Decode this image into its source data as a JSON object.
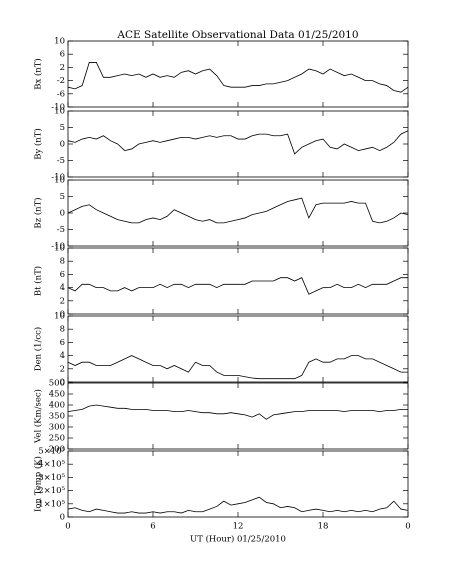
{
  "chart_data": [
    {
      "type": "line",
      "title": "ACE Satellite Observational Data  01/25/2010",
      "ylabel": "Bx (nT)",
      "color": "#000000",
      "ylim": [
        -10,
        10
      ],
      "yticks": [
        -10,
        -6,
        -2,
        2,
        6,
        10
      ],
      "x": [
        0,
        0.5,
        1,
        1.5,
        2,
        2.5,
        3,
        3.5,
        4,
        4.5,
        5,
        5.5,
        6,
        6.5,
        7,
        7.5,
        8,
        8.5,
        9,
        9.5,
        10,
        10.5,
        11,
        11.5,
        12,
        12.5,
        13,
        13.5,
        14,
        14.5,
        15,
        15.5,
        16,
        16.5,
        17,
        17.5,
        18,
        18.5,
        19,
        19.5,
        20,
        20.5,
        21,
        21.5,
        22,
        22.5,
        23,
        23.5,
        24
      ],
      "values": [
        -4,
        -4.5,
        -3.5,
        3.5,
        3.5,
        -1,
        -1,
        -0.5,
        0,
        -0.5,
        0,
        -1,
        0,
        -1,
        -0.5,
        -1,
        0.5,
        1,
        0,
        1,
        1.5,
        -0.5,
        -3.5,
        -4,
        -4,
        -4,
        -3.5,
        -3.5,
        -3,
        -3,
        -2.5,
        -2,
        -1,
        0,
        1.5,
        1,
        0,
        1.5,
        0.5,
        -0.5,
        0,
        -1,
        -2,
        -2,
        -3,
        -3.5,
        -5,
        -5.5,
        -4
      ]
    },
    {
      "type": "line",
      "ylabel": "By (nT)",
      "color": "#000000",
      "ylim": [
        -10,
        10
      ],
      "yticks": [
        -10,
        -5,
        0,
        5,
        10
      ],
      "x": [
        0,
        0.5,
        1,
        1.5,
        2,
        2.5,
        3,
        3.5,
        4,
        4.5,
        5,
        5.5,
        6,
        6.5,
        7,
        7.5,
        8,
        8.5,
        9,
        9.5,
        10,
        10.5,
        11,
        11.5,
        12,
        12.5,
        13,
        13.5,
        14,
        14.5,
        15,
        15.5,
        16,
        16.5,
        17,
        17.5,
        18,
        18.5,
        19,
        19.5,
        20,
        20.5,
        21,
        21.5,
        22,
        22.5,
        23,
        23.5,
        24
      ],
      "values": [
        1,
        0.5,
        1.5,
        2,
        1.5,
        2.5,
        1,
        0,
        -2,
        -1.5,
        0,
        0.5,
        1,
        0.5,
        1,
        1.5,
        2,
        2,
        1.5,
        2,
        2.5,
        2,
        2.5,
        2.5,
        1.5,
        1.5,
        2.5,
        3,
        3,
        2.5,
        2.5,
        3,
        -3,
        -1,
        0,
        1,
        1.5,
        -1,
        -1.5,
        0,
        -1,
        -2,
        -1.5,
        -1,
        -2,
        -1,
        0.5,
        3,
        4
      ]
    },
    {
      "type": "line",
      "ylabel": "Bz (nT)",
      "color": "#000000",
      "ylim": [
        -10,
        10
      ],
      "yticks": [
        -10,
        -5,
        0,
        5,
        10
      ],
      "x": [
        0,
        0.5,
        1,
        1.5,
        2,
        2.5,
        3,
        3.5,
        4,
        4.5,
        5,
        5.5,
        6,
        6.5,
        7,
        7.5,
        8,
        8.5,
        9,
        9.5,
        10,
        10.5,
        11,
        11.5,
        12,
        12.5,
        13,
        13.5,
        14,
        14.5,
        15,
        15.5,
        16,
        16.5,
        17,
        17.5,
        18,
        18.5,
        19,
        19.5,
        20,
        20.5,
        21,
        21.5,
        22,
        22.5,
        23,
        23.5,
        24
      ],
      "values": [
        0,
        1,
        2,
        2.5,
        1,
        0,
        -1,
        -2,
        -2.5,
        -3,
        -3,
        -2,
        -1.5,
        -2,
        -1,
        1,
        0,
        -1,
        -2,
        -2.5,
        -2,
        -3,
        -3,
        -2.5,
        -2,
        -1.5,
        -0.5,
        0,
        0.5,
        1.5,
        2.5,
        3.5,
        4,
        4.5,
        -1.5,
        2.5,
        3,
        3,
        3,
        3,
        3.5,
        3,
        3,
        -2.5,
        -3,
        -2.5,
        -1.5,
        0,
        -0.5
      ]
    },
    {
      "type": "line",
      "ylabel": "Bt (nT)",
      "color": "#000000",
      "ylim": [
        0,
        10
      ],
      "yticks": [
        0,
        2,
        4,
        6,
        8,
        10
      ],
      "x": [
        0,
        0.5,
        1,
        1.5,
        2,
        2.5,
        3,
        3.5,
        4,
        4.5,
        5,
        5.5,
        6,
        6.5,
        7,
        7.5,
        8,
        8.5,
        9,
        9.5,
        10,
        10.5,
        11,
        11.5,
        12,
        12.5,
        13,
        13.5,
        14,
        14.5,
        15,
        15.5,
        16,
        16.5,
        17,
        17.5,
        18,
        18.5,
        19,
        19.5,
        20,
        20.5,
        21,
        21.5,
        22,
        22.5,
        23,
        23.5,
        24
      ],
      "values": [
        4,
        3.5,
        4.5,
        4.5,
        4,
        4,
        3.5,
        3.5,
        4,
        3.5,
        4,
        4,
        4,
        4.5,
        4,
        4.5,
        4.5,
        4,
        4.5,
        4.5,
        4.5,
        4,
        4.5,
        4.5,
        4.5,
        4.5,
        5,
        5,
        5,
        5,
        5.5,
        5.5,
        5,
        5.5,
        3,
        3.5,
        4,
        4,
        4.5,
        4,
        4,
        4.5,
        4,
        4.5,
        4.5,
        4.5,
        5,
        5.5,
        5.5
      ]
    },
    {
      "type": "line",
      "ylabel": "Den (1/cc)",
      "color": "#000000",
      "ylim": [
        0,
        10
      ],
      "yticks": [
        0,
        2,
        4,
        6,
        8,
        10
      ],
      "x": [
        0,
        0.5,
        1,
        1.5,
        2,
        2.5,
        3,
        3.5,
        4,
        4.5,
        5,
        5.5,
        6,
        6.5,
        7,
        7.5,
        8,
        8.5,
        9,
        9.5,
        10,
        10.5,
        11,
        11.5,
        12,
        12.5,
        13,
        13.5,
        14,
        14.5,
        15,
        15.5,
        16,
        16.5,
        17,
        17.5,
        18,
        18.5,
        19,
        19.5,
        20,
        20.5,
        21,
        21.5,
        22,
        22.5,
        23,
        23.5,
        24
      ],
      "values": [
        3,
        2.5,
        3,
        3,
        2.5,
        2.5,
        2.5,
        3,
        3.5,
        4,
        3.5,
        3,
        2.5,
        2.5,
        2,
        2.5,
        2,
        1.5,
        3,
        2.5,
        2.5,
        1.5,
        1,
        1,
        1,
        0.8,
        0.6,
        0.5,
        0.5,
        0.5,
        0.5,
        0.5,
        0.5,
        1,
        3,
        3.5,
        3,
        3,
        3.5,
        3.5,
        4,
        4,
        3.5,
        3.5,
        3,
        2.5,
        2,
        1.5,
        1.5
      ]
    },
    {
      "type": "line",
      "ylabel": "Vel (Km/sec)",
      "color": "#000000",
      "ylim": [
        200,
        500
      ],
      "yticks": [
        200,
        250,
        300,
        350,
        400,
        450,
        500
      ],
      "x": [
        0,
        0.5,
        1,
        1.5,
        2,
        2.5,
        3,
        3.5,
        4,
        4.5,
        5,
        5.5,
        6,
        6.5,
        7,
        7.5,
        8,
        8.5,
        9,
        9.5,
        10,
        10.5,
        11,
        11.5,
        12,
        12.5,
        13,
        13.5,
        14,
        14.5,
        15,
        15.5,
        16,
        16.5,
        17,
        17.5,
        18,
        18.5,
        19,
        19.5,
        20,
        20.5,
        21,
        21.5,
        22,
        22.5,
        23,
        23.5,
        24
      ],
      "values": [
        370,
        375,
        380,
        395,
        400,
        395,
        390,
        385,
        385,
        380,
        380,
        380,
        375,
        375,
        375,
        370,
        370,
        375,
        370,
        365,
        365,
        360,
        360,
        365,
        360,
        355,
        345,
        360,
        335,
        355,
        360,
        365,
        370,
        370,
        375,
        375,
        375,
        375,
        375,
        370,
        375,
        375,
        375,
        375,
        370,
        375,
        375,
        380,
        380
      ]
    },
    {
      "type": "line",
      "ylabel": "Ion Temp (K)",
      "xlabel": "UT (Hour)  01/25/2010",
      "color": "#000000",
      "ylim": [
        0,
        500000
      ],
      "yticks": [
        0,
        {
          "value": 100000,
          "label": "1×10⁵"
        },
        {
          "value": 200000,
          "label": "2×10⁵"
        },
        {
          "value": 300000,
          "label": "3×10⁵"
        },
        {
          "value": 400000,
          "label": "4×10⁵"
        },
        {
          "value": 500000,
          "label": "5×10⁵"
        }
      ],
      "xlim": [
        0,
        24
      ],
      "xticks": [
        0,
        6,
        12,
        18,
        {
          "value": 24,
          "label": "0"
        }
      ],
      "x": [
        0,
        0.5,
        1,
        1.5,
        2,
        2.5,
        3,
        3.5,
        4,
        4.5,
        5,
        5.5,
        6,
        6.5,
        7,
        7.5,
        8,
        8.5,
        9,
        9.5,
        10,
        10.5,
        11,
        11.5,
        12,
        12.5,
        13,
        13.5,
        14,
        14.5,
        15,
        15.5,
        16,
        16.5,
        17,
        17.5,
        18,
        18.5,
        19,
        19.5,
        20,
        20.5,
        21,
        21.5,
        22,
        22.5,
        23,
        23.5,
        24
      ],
      "values": [
        60000,
        70000,
        50000,
        40000,
        60000,
        50000,
        40000,
        30000,
        30000,
        40000,
        30000,
        30000,
        40000,
        30000,
        40000,
        40000,
        30000,
        50000,
        40000,
        40000,
        60000,
        80000,
        120000,
        90000,
        100000,
        110000,
        130000,
        150000,
        110000,
        100000,
        70000,
        80000,
        70000,
        40000,
        50000,
        60000,
        50000,
        40000,
        50000,
        40000,
        50000,
        40000,
        50000,
        40000,
        60000,
        70000,
        120000,
        60000,
        50000
      ]
    }
  ]
}
